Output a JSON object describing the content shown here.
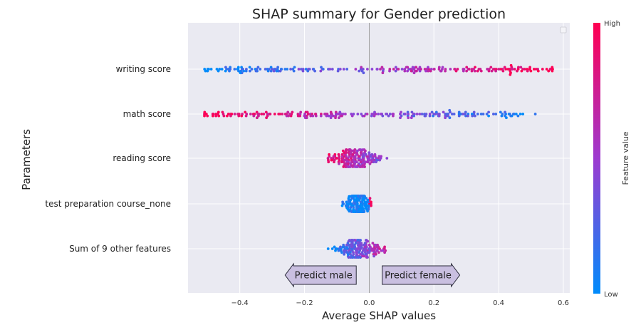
{
  "chart_data": {
    "type": "scatter",
    "title": "SHAP summary for Gender prediction",
    "xlabel": "Average SHAP values",
    "ylabel": "Parameters",
    "xlim": [
      -0.56,
      0.62
    ],
    "xticks": [
      -0.4,
      -0.2,
      0.0,
      0.2,
      0.4,
      0.6
    ],
    "xtick_labels": [
      "−0.4",
      "−0.2",
      "0.0",
      "0.2",
      "0.4",
      "0.6"
    ],
    "grid": true,
    "features": [
      "writing score",
      "math score",
      "reading score",
      "test preparation course_none",
      "Sum of 9 other features"
    ],
    "colorbar": {
      "label": "Feature value",
      "high_label": "High",
      "low_label": "Low",
      "low_color": "#008bfb",
      "high_color": "#ff0052"
    },
    "annotations": [
      {
        "text": "Predict male",
        "direction": "left",
        "x_start": -0.04,
        "x_end": -0.26
      },
      {
        "text": "Predict female",
        "direction": "right",
        "x_start": 0.04,
        "x_end": 0.28
      }
    ],
    "legend": "top-right",
    "zero_line": 0.0
  }
}
